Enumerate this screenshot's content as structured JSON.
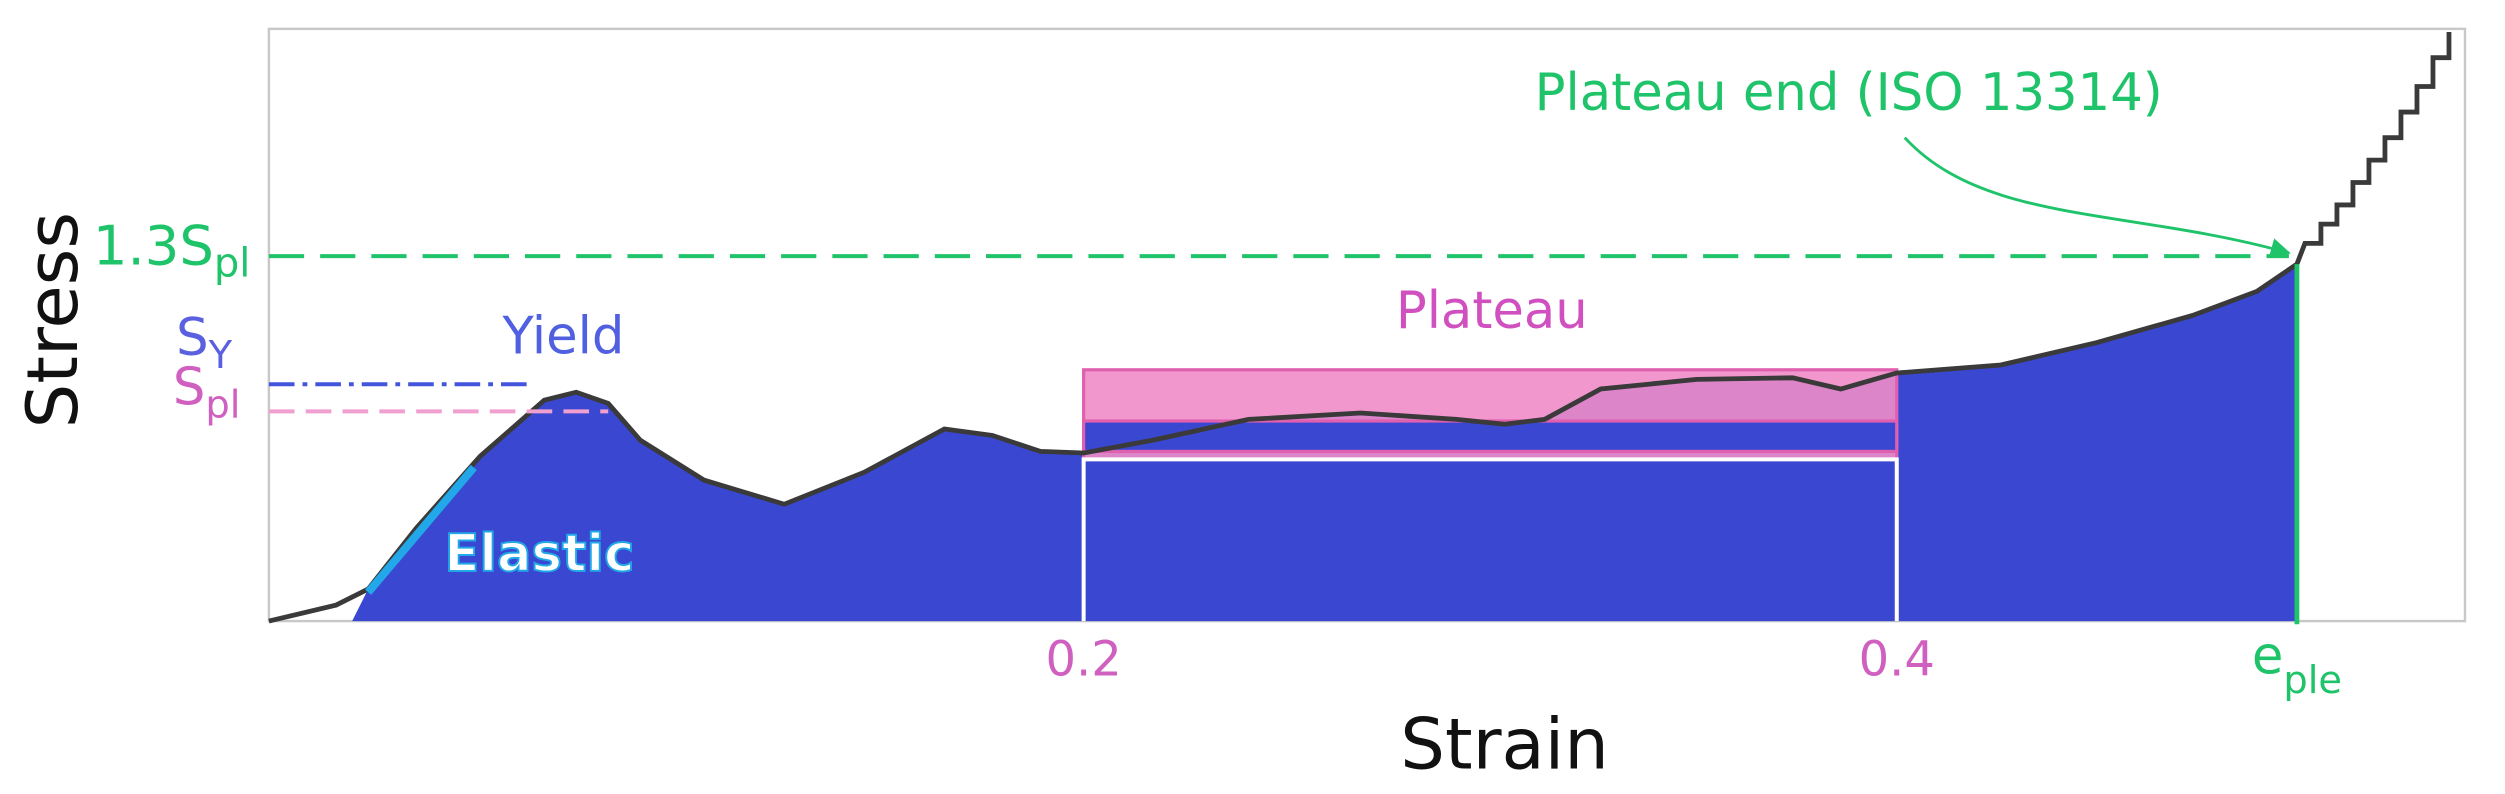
{
  "axes": {
    "x_label": "Strain",
    "y_label": "Stress"
  },
  "x_ticks": [
    {
      "text": "0.2"
    },
    {
      "text": "0.4"
    },
    {
      "base": "e",
      "sub": "ple"
    }
  ],
  "y_labels": [
    {
      "base": "1.3S",
      "sub": "pl"
    },
    {
      "base": "S",
      "sub": "Y"
    },
    {
      "base": "S",
      "sub": "pl"
    }
  ],
  "annotations": {
    "yield": "Yield",
    "plateau": "Plateau",
    "elastic": "Elastic",
    "plateau_end": "Plateau end (ISO 13314)"
  }
}
